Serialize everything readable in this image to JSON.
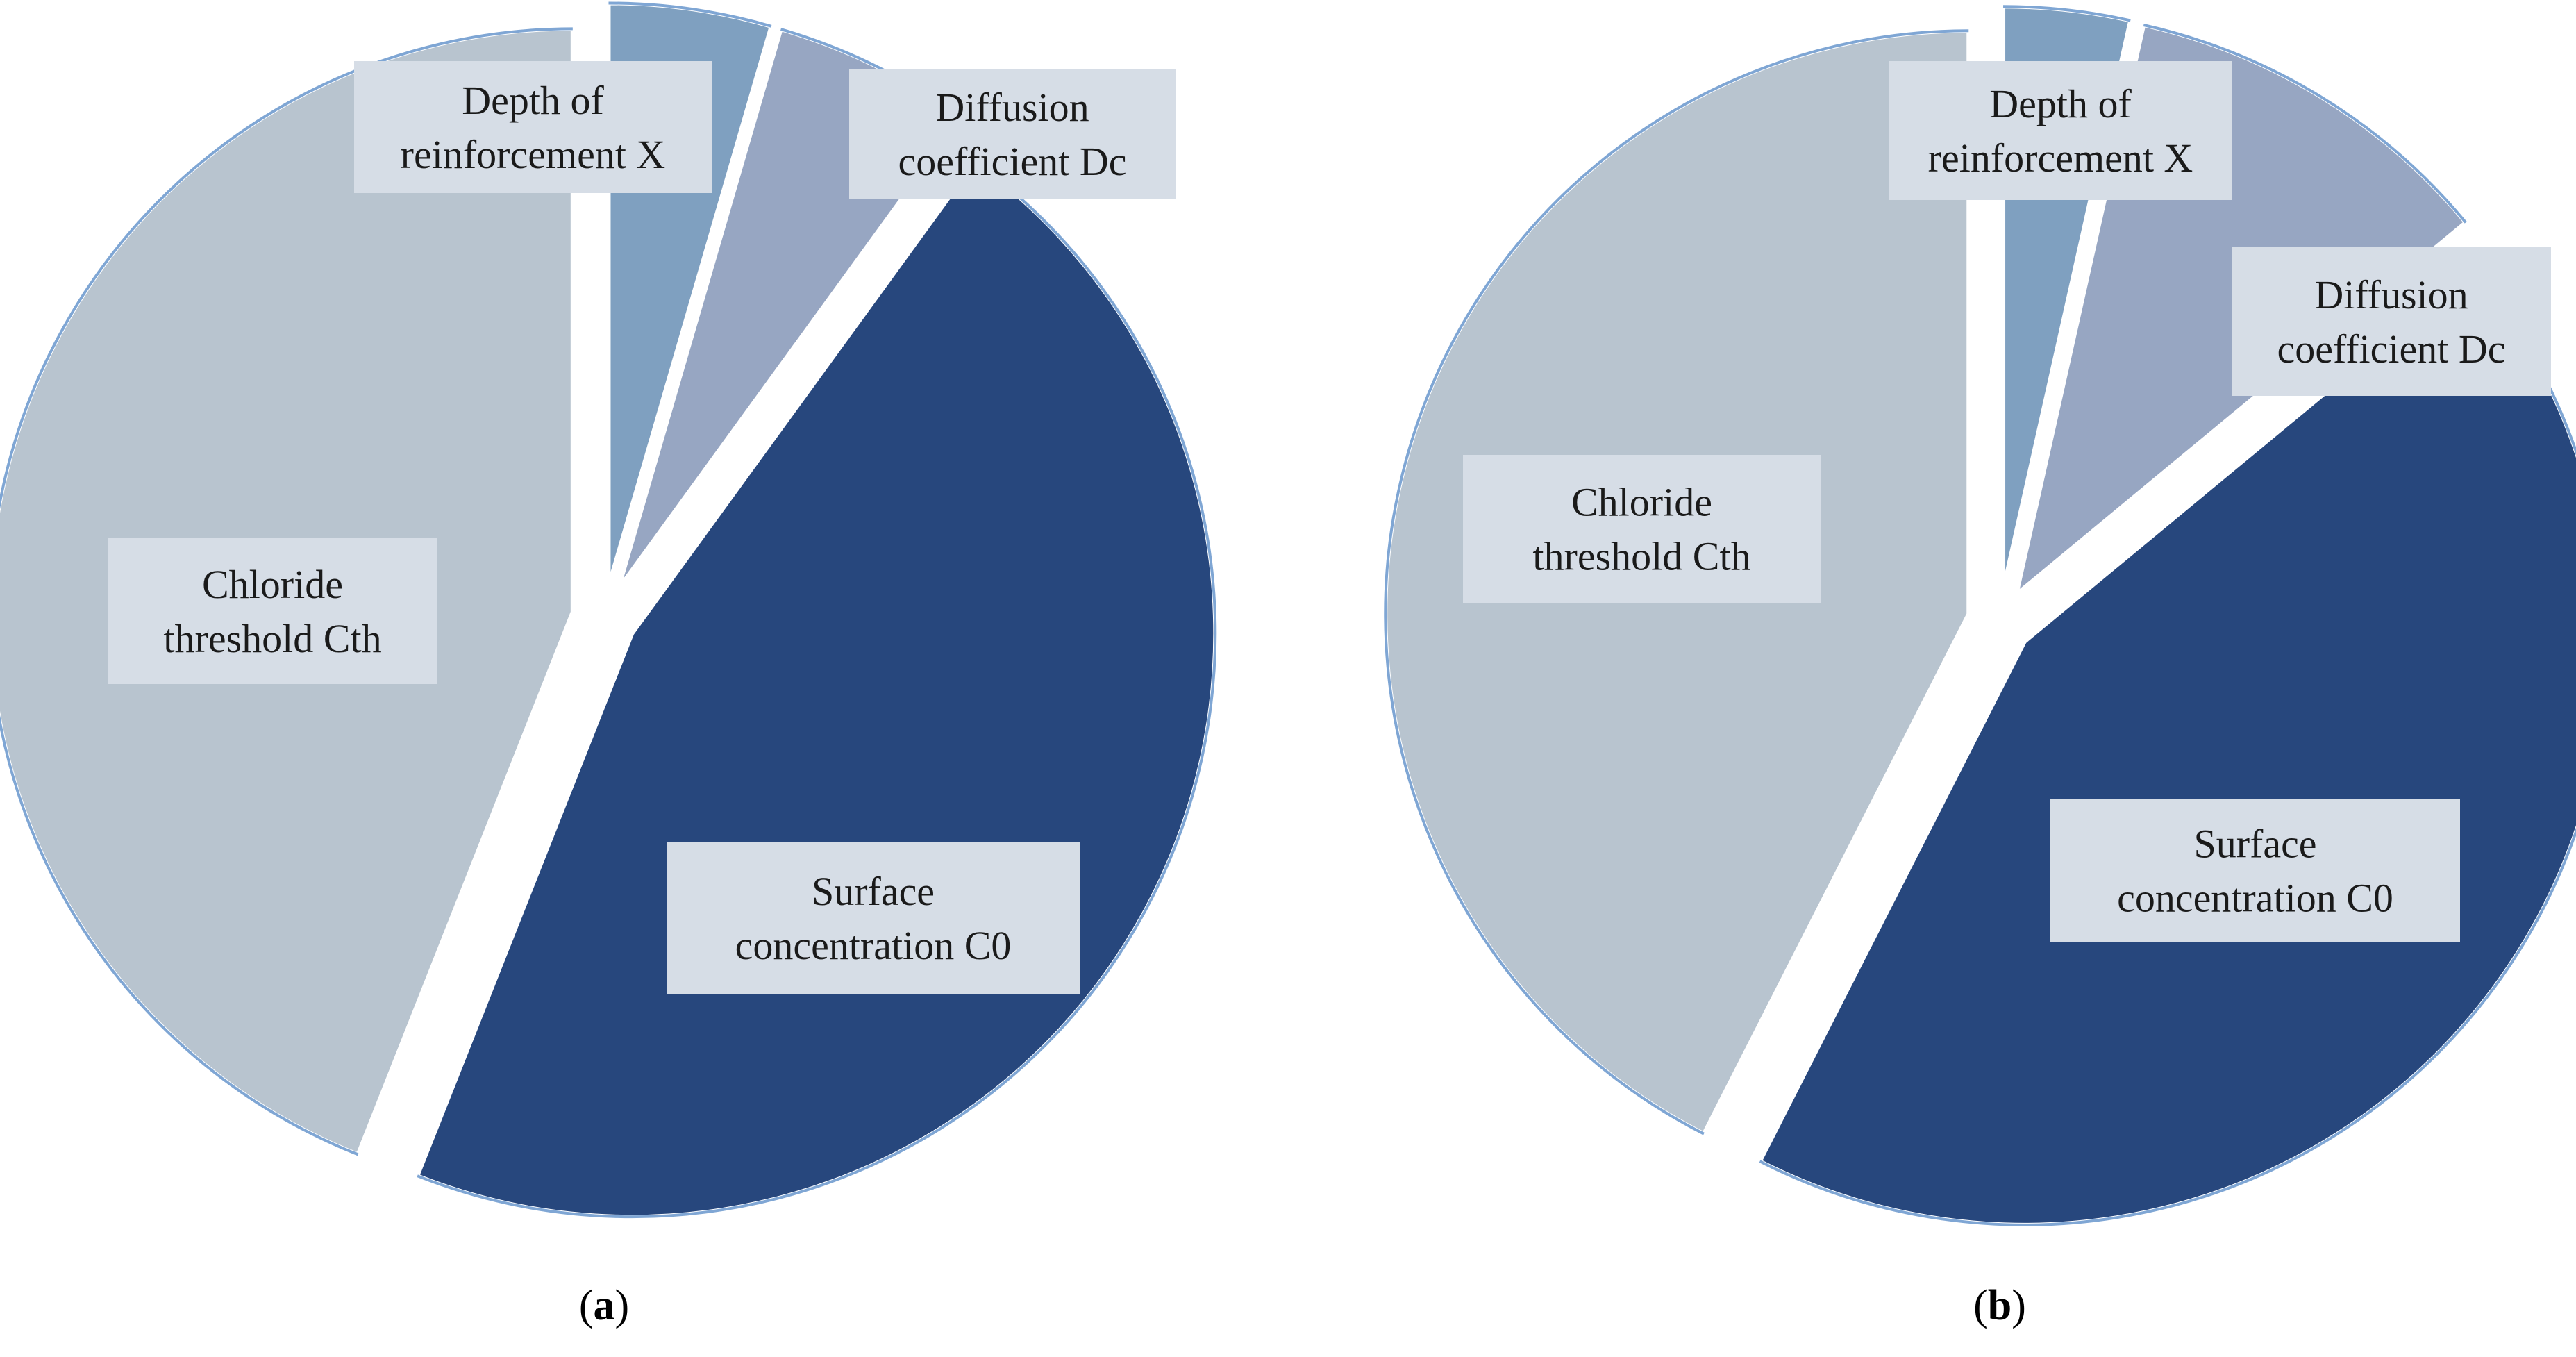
{
  "colors": {
    "depth": "#7fa0c0",
    "diffusion": "#97a6c2",
    "surface": "#27477d",
    "chloride": "#b8c4cf",
    "edge": "#7fa6d4",
    "label_bg": "#d6dde6"
  },
  "chart_data": [
    {
      "type": "pie",
      "caption": {
        "open": "(",
        "letter": "a",
        "close": ")"
      },
      "slices": [
        {
          "label_lines": [
            "Depth of",
            "reinforcement X"
          ],
          "value": 4.5,
          "color_key": "depth"
        },
        {
          "label_lines": [
            "Diffusion",
            "coefficient Dc"
          ],
          "value": 5.5,
          "color_key": "diffusion"
        },
        {
          "label_lines": [
            "Surface",
            "concentration C0"
          ],
          "value": 46,
          "color_key": "surface"
        },
        {
          "label_lines": [
            "Chloride",
            "threshold  Cth"
          ],
          "value": 44,
          "color_key": "chloride"
        }
      ]
    },
    {
      "type": "pie",
      "caption": {
        "open": "(",
        "letter": "b",
        "close": ")"
      },
      "slices": [
        {
          "label_lines": [
            "Depth of",
            "reinforcement X"
          ],
          "value": 3.5,
          "color_key": "depth"
        },
        {
          "label_lines": [
            "Diffusion",
            "coefficient Dc"
          ],
          "value": 10.5,
          "color_key": "diffusion"
        },
        {
          "label_lines": [
            "Surface",
            "concentration C0"
          ],
          "value": 43.5,
          "color_key": "surface"
        },
        {
          "label_lines": [
            "Chloride",
            "threshold  Cth"
          ],
          "value": 42.5,
          "color_key": "chloride"
        }
      ]
    }
  ]
}
